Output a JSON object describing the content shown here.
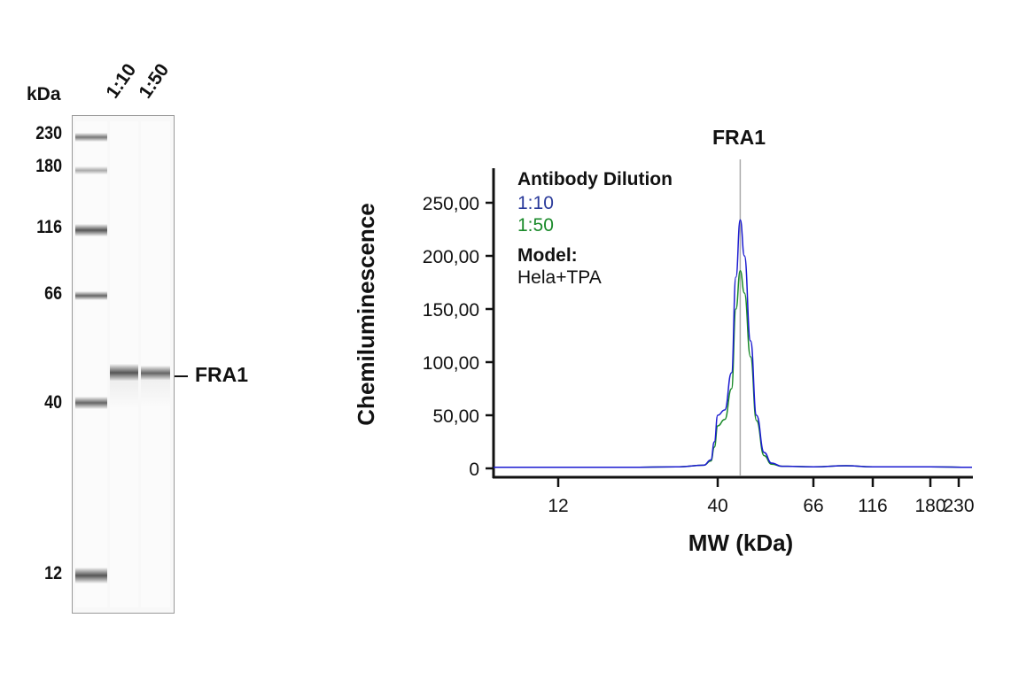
{
  "blot": {
    "unit_label": "kDa",
    "lanes": [
      "1:10",
      "1:50"
    ],
    "markers": [
      "230",
      "180",
      "116",
      "66",
      "40",
      "12"
    ],
    "band_label": "FRA1"
  },
  "chart_data": {
    "type": "line",
    "title": "FRA1",
    "xlabel": "MW (kDa)",
    "ylabel": "Chemiluminescence",
    "x_ticks": [
      "12",
      "40",
      "66",
      "116",
      "180",
      "230"
    ],
    "y_ticks": [
      "0",
      "50,00",
      "100,00",
      "150,00",
      "200,00",
      "250,00"
    ],
    "ylim": [
      0,
      270
    ],
    "grid": false,
    "reference_line_kDa": 45,
    "legend": {
      "title": "Antibody Dilution",
      "model_label": "Model:",
      "model_value": "Hela+TPA",
      "placement": "top-left"
    },
    "colors": {
      "1:10": "#1a1ad0",
      "1:50": "#1a8a2a"
    },
    "series": [
      {
        "name": "1:10",
        "x": [
          7.4,
          20,
          30,
          36,
          38,
          39,
          40,
          41.5,
          43,
          44,
          45,
          46,
          47.5,
          49,
          51,
          53,
          56,
          66,
          90,
          116,
          180,
          258
        ],
        "y": [
          1,
          1,
          1.5,
          3,
          8,
          25,
          50,
          55,
          90,
          180,
          234,
          200,
          120,
          50,
          15,
          5,
          2,
          1.5,
          2.5,
          1.5,
          1.5,
          1
        ]
      },
      {
        "name": "1:50",
        "x": [
          7.4,
          20,
          30,
          36,
          38,
          39,
          40,
          41.5,
          43,
          44,
          45,
          46,
          47.5,
          49,
          51,
          53,
          56,
          66,
          90,
          116,
          180,
          258
        ],
        "y": [
          1,
          1,
          1.5,
          3,
          7,
          20,
          40,
          46,
          75,
          150,
          186,
          165,
          105,
          45,
          12,
          4,
          2,
          1.5,
          2.5,
          1.5,
          1.5,
          1
        ]
      }
    ]
  }
}
